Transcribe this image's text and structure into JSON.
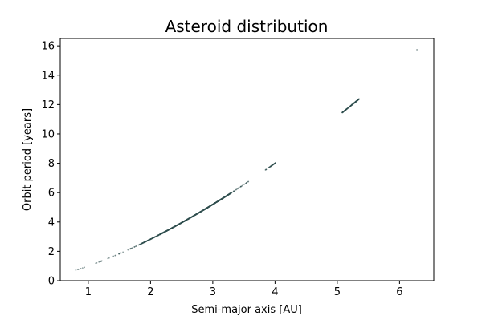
{
  "chart_data": {
    "type": "scatter",
    "title": "Asteroid distribution",
    "xlabel": "Semi-major axis [AU]",
    "ylabel": "Orbit period [years]",
    "xlim": [
      0.55,
      6.55
    ],
    "ylim": [
      0,
      16.5
    ],
    "xticks": [
      1,
      2,
      3,
      4,
      5,
      6
    ],
    "yticks": [
      0,
      2,
      4,
      6,
      8,
      10,
      12,
      14,
      16
    ],
    "grid": false,
    "legend": "none",
    "marker_color": "#2f4f4f",
    "relation": "P = a^1.5",
    "clusters": [
      {
        "a_min": 0.8,
        "a_max": 0.95,
        "count": 6
      },
      {
        "a_min": 1.08,
        "a_max": 1.25,
        "count": 8
      },
      {
        "a_min": 1.3,
        "a_max": 1.58,
        "count": 10
      },
      {
        "a_min": 1.6,
        "a_max": 1.85,
        "count": 16
      },
      {
        "a_min": 1.85,
        "a_max": 2.15,
        "count": 90
      },
      {
        "a_min": 2.15,
        "a_max": 3.3,
        "count": 1000
      },
      {
        "a_min": 3.3,
        "a_max": 3.6,
        "count": 25
      },
      {
        "a_min": 3.8,
        "a_max": 3.9,
        "count": 4
      },
      {
        "a_min": 3.9,
        "a_max": 4.01,
        "count": 40
      },
      {
        "a_min": 5.08,
        "a_max": 5.35,
        "count": 130
      },
      {
        "a_min": 6.28,
        "a_max": 6.28,
        "count": 1
      }
    ]
  }
}
